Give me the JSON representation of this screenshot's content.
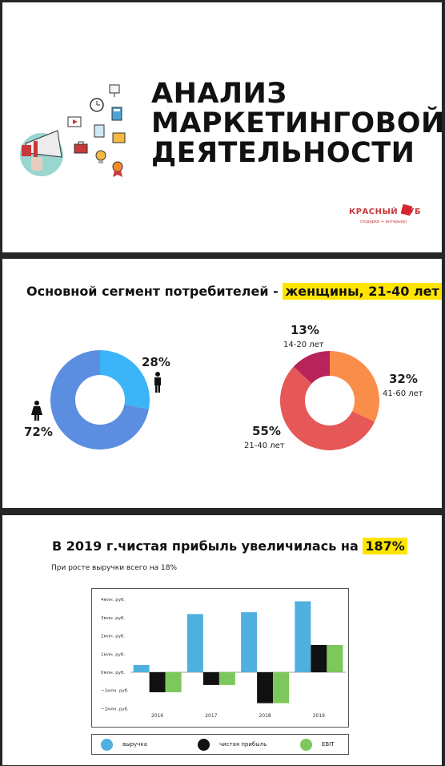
{
  "slide1": {
    "title_lines": [
      "АНАЛИЗ",
      "МАРКЕТИНГОВОЙ",
      "ДЕЯТЕЛЬНОСТИ"
    ],
    "logo_text": "КРАСНЫЙ КУБ",
    "logo_tagline": "(подарки + интерьер)"
  },
  "slide2": {
    "heading_prefix": "Основной сегмент потребителей -",
    "heading_highlight": "женщины, 21-40 лет",
    "gender": {
      "female_pct": "72%",
      "male_pct": "28%"
    },
    "age": {
      "a_pct": "13%",
      "a_label": "14-20 лет",
      "b_pct": "32%",
      "b_label": "41-60 лет",
      "c_pct": "55%",
      "c_label": "21-40 лет"
    }
  },
  "slide3": {
    "heading_prefix": "В 2019 г.чистая прибыль увеличилась на",
    "heading_highlight": "187%",
    "subheading": "При росте выручки всего на 18%"
  },
  "colors": {
    "blue_light": "#3bb5f7",
    "blue_main": "#5b8ee0",
    "orange": "#fb8d4b",
    "red": "#e65757",
    "crimson": "#b8245a",
    "bar_blue": "#4fb0e0",
    "bar_black": "#111111",
    "bar_green": "#7cc85a"
  },
  "chart_data": [
    {
      "type": "pie",
      "labels": [
        "72%",
        "28%"
      ],
      "values": [
        72,
        28
      ],
      "colors": [
        "#5b8ee0",
        "#3bb5f7"
      ]
    },
    {
      "type": "pie",
      "labels": [
        "14-20 лет",
        "41-60 лет",
        "21-40 лет"
      ],
      "values": [
        13,
        32,
        55
      ],
      "colors": [
        "#b8245a",
        "#fb8d4b",
        "#e65757"
      ]
    },
    {
      "type": "bar",
      "categories": [
        "2016",
        "2017",
        "2018",
        "2019"
      ],
      "series": [
        {
          "name": "выручка",
          "values": [
            0.4,
            3.2,
            3.3,
            3.9
          ]
        },
        {
          "name": "чистая прибыль",
          "values": [
            -1.1,
            -0.7,
            -1.7,
            1.5
          ]
        },
        {
          "name": "EBIT",
          "values": [
            -1.1,
            -0.7,
            -1.7,
            1.5
          ]
        }
      ],
      "yticks": [
        "4млн. руб.",
        "3млн. руб.",
        "2млн. руб.",
        "1млн. руб.",
        "0млн. руб.",
        "−1млн. руб.",
        "−2млн. руб."
      ],
      "ylim": [
        -2,
        4
      ],
      "grid": false,
      "legend": "bottom"
    }
  ]
}
